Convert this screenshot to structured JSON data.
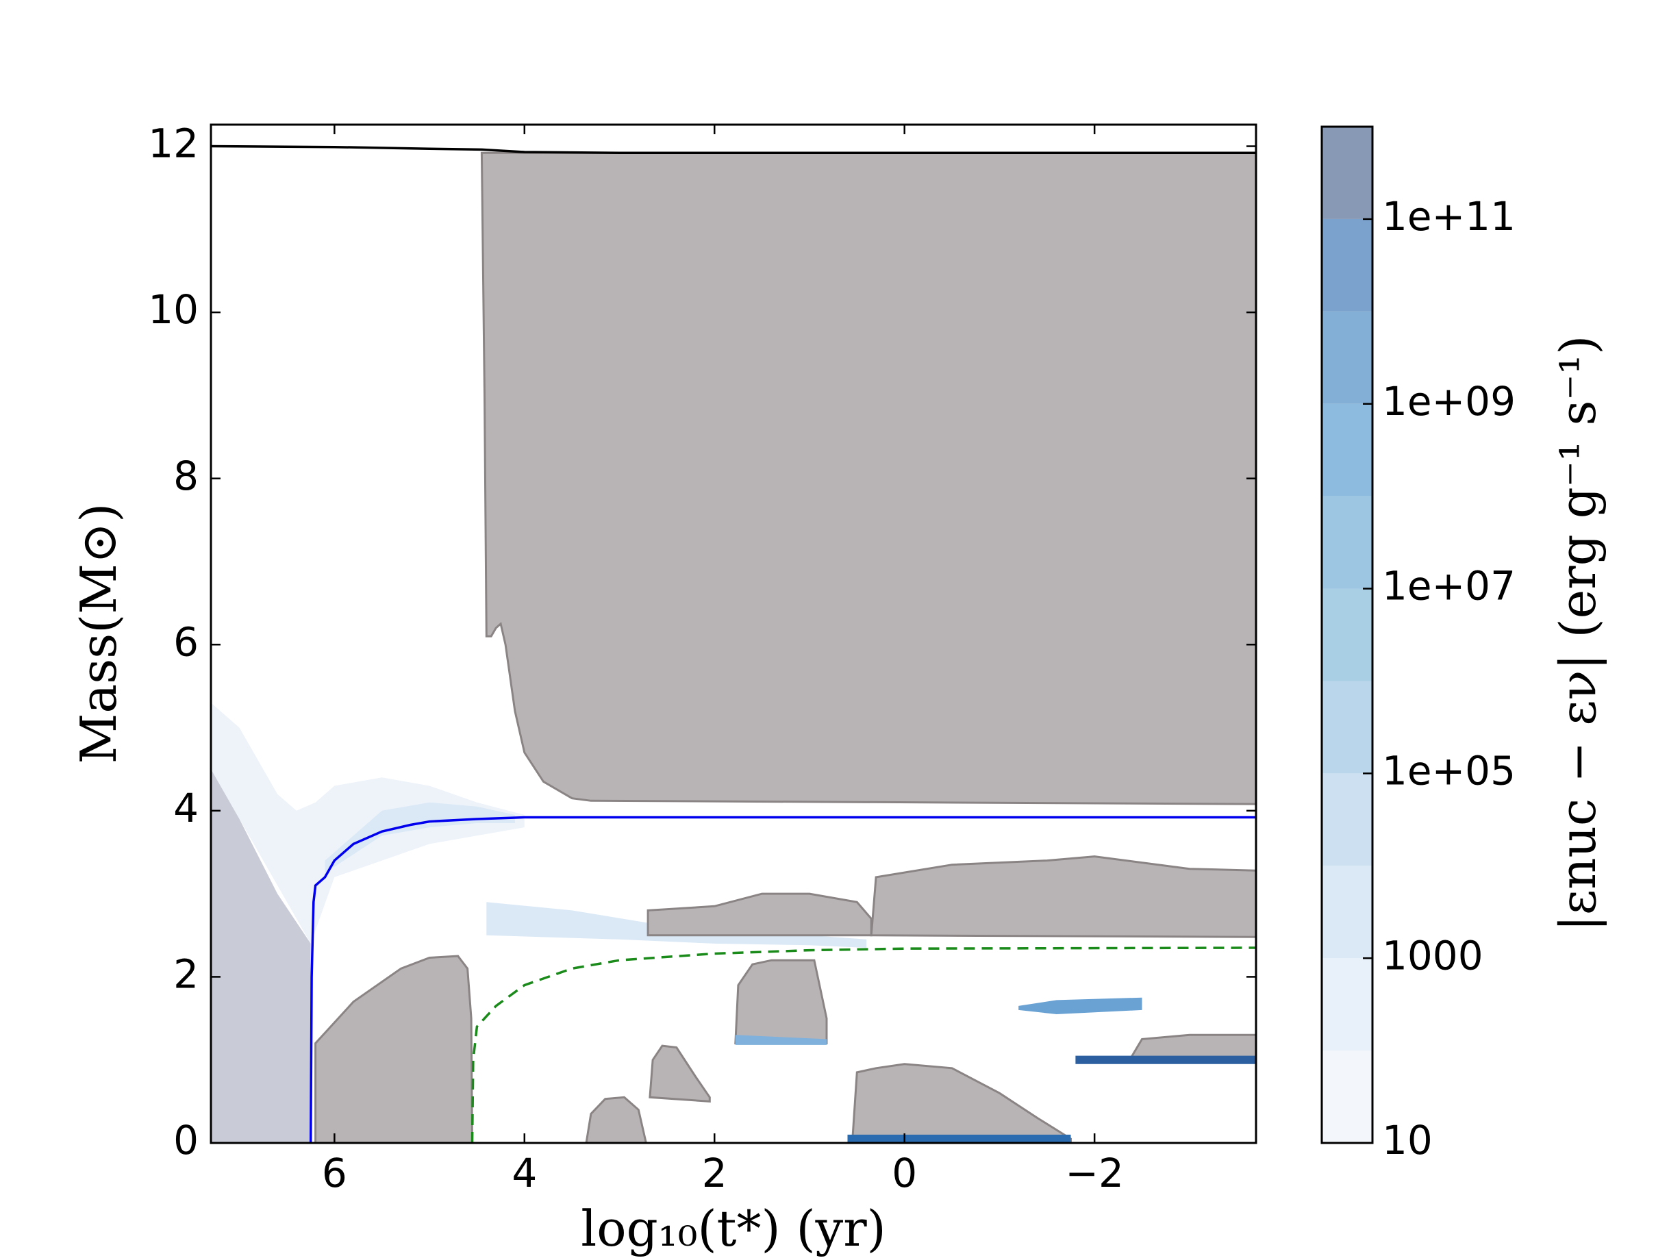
{
  "chart_data": {
    "type": "kippenhahn",
    "xlabel": "log₁₀(t*) (yr)",
    "ylabel": "Mass(M⊙)",
    "colorbar_label": "|εnuc − εν|  (erg g⁻¹ s⁻¹)",
    "xlim": [
      7.3,
      -3.7
    ],
    "ylim": [
      0,
      12.26
    ],
    "xticks": [
      6,
      4,
      2,
      0,
      {
        "value": -2,
        "label": "−2"
      }
    ],
    "yticks": [
      0,
      2,
      4,
      6,
      8,
      10,
      12
    ],
    "clim": [
      10,
      1000000000000
    ],
    "clog": true,
    "colorbar_levels": [
      10,
      100,
      1000,
      10000,
      100000,
      1000000,
      10000000,
      100000000,
      1000000000,
      10000000000,
      100000000000,
      1000000000000
    ],
    "colorbar_colors": [
      "#f3f7fc",
      "#e8f1fa",
      "#dbe9f6",
      "#cde0f1",
      "#bad6eb",
      "#a9cfe5",
      "#9cc6e2",
      "#8dbbdf",
      "#83afd6",
      "#7aa2cc",
      "#8899b5"
    ],
    "cticks": [
      10,
      1000,
      {
        "value": 100000,
        "label": "1e+05"
      },
      {
        "value": 10000000,
        "label": "1e+07"
      },
      {
        "value": 1000000000,
        "label": "1e+09"
      },
      {
        "value": 100000000000,
        "label": "1e+11"
      }
    ],
    "region_stroke": "#8a8485",
    "regions": [
      {
        "color": "#eef3fa",
        "x": [
          7.3,
          7.0,
          6.6,
          6.4,
          6.2,
          6.0,
          5.5,
          5.0,
          4.5,
          4.0,
          4.0,
          5.0,
          6.0,
          6.25,
          7.3
        ],
        "y": [
          5.3,
          5.0,
          4.2,
          4.0,
          4.1,
          4.3,
          4.4,
          4.3,
          4.1,
          3.95,
          3.8,
          3.6,
          3.2,
          2.4,
          4.5
        ]
      },
      {
        "color": "#c9cbd6",
        "x": [
          7.3,
          7.0,
          6.6,
          6.25,
          6.25,
          7.3
        ],
        "y": [
          4.5,
          3.9,
          3.0,
          2.4,
          0,
          0
        ]
      },
      {
        "color": "#dbe9f6",
        "x": [
          6.1,
          5.5,
          5.0,
          4.5,
          4.1,
          4.1,
          4.5,
          5.0,
          5.5,
          6.1
        ],
        "y": [
          3.4,
          4.0,
          4.1,
          4.05,
          3.95,
          3.85,
          3.85,
          3.8,
          3.7,
          3.25
        ]
      },
      {
        "color": "#b8b4b5",
        "x": [
          4.45,
          4.42,
          4.4,
          4.35,
          4.3,
          4.25,
          4.2,
          4.1,
          4.0,
          3.8,
          3.5,
          3.3,
          -3.7,
          -3.7
        ],
        "y": [
          11.92,
          9,
          6.1,
          6.1,
          6.2,
          6.25,
          6.0,
          5.2,
          4.7,
          4.35,
          4.15,
          4.12,
          4.08,
          11.92
        ]
      },
      {
        "color": "#b8b4b5",
        "x": [
          6.2,
          6.2,
          5.8,
          5.3,
          5.0,
          4.7,
          4.6,
          4.56,
          4.55
        ],
        "y": [
          0,
          1.2,
          1.7,
          2.1,
          2.23,
          2.25,
          2.1,
          1.5,
          0
        ]
      },
      {
        "color": "#dbe9f6",
        "x": [
          4.4,
          3.5,
          2.7,
          2.0,
          1.0,
          0.4,
          0.4,
          1.0,
          2.0,
          3.0,
          4.4
        ],
        "y": [
          2.9,
          2.8,
          2.65,
          2.55,
          2.5,
          2.45,
          2.35,
          2.38,
          2.4,
          2.45,
          2.5
        ]
      },
      {
        "color": "#b8b4b5",
        "x": [
          3.35,
          3.3,
          3.15,
          2.95,
          2.8,
          2.72
        ],
        "y": [
          0,
          0.35,
          0.53,
          0.55,
          0.4,
          0
        ]
      },
      {
        "color": "#b8b4b5",
        "x": [
          2.68,
          2.65,
          2.55,
          2.4,
          2.2,
          2.05,
          2.05
        ],
        "y": [
          0.55,
          1.0,
          1.17,
          1.15,
          0.8,
          0.55,
          0.5
        ]
      },
      {
        "color": "#b8b4b5",
        "x": [
          1.78,
          1.75,
          1.6,
          1.4,
          1.2,
          0.95,
          0.82,
          0.82
        ],
        "y": [
          1.2,
          1.9,
          2.15,
          2.2,
          2.2,
          2.2,
          1.5,
          1.2
        ]
      },
      {
        "color": "#b8b4b5",
        "x": [
          0.55,
          0.5,
          0.3,
          0,
          -0.5,
          -1.0,
          -1.4,
          -1.75,
          -1.75
        ],
        "y": [
          0,
          0.85,
          0.9,
          0.95,
          0.9,
          0.6,
          0.3,
          0.05,
          0
        ]
      },
      {
        "color": "#b8b4b5",
        "x": [
          2.7,
          2.7,
          2.0,
          1.5,
          1.0,
          0.5,
          0.35,
          0.35
        ],
        "y": [
          2.5,
          2.8,
          2.85,
          3.0,
          3.0,
          2.9,
          2.7,
          2.5
        ]
      },
      {
        "color": "#b8b4b5",
        "x": [
          0.35,
          0.3,
          -0.5,
          -1.5,
          -2.0,
          -3.0,
          -3.7,
          -3.7
        ],
        "y": [
          2.5,
          3.2,
          3.35,
          3.4,
          3.45,
          3.3,
          3.28,
          2.48
        ]
      },
      {
        "color": "#b8b4b5",
        "x": [
          -2.37,
          -2.5,
          -3.0,
          -3.7,
          -3.7
        ],
        "y": [
          1.0,
          1.25,
          1.3,
          1.3,
          1.0
        ]
      },
      {
        "color": "#2b6cb0",
        "x": [
          0.6,
          -1.75,
          -1.75,
          0.6
        ],
        "y": [
          0.1,
          0.1,
          0,
          0
        ]
      },
      {
        "color": "#2b5fa0",
        "x": [
          -1.8,
          -3.7,
          -3.7,
          -1.8
        ],
        "y": [
          1.05,
          1.05,
          0.95,
          0.95
        ]
      },
      {
        "color": "#6aa2d4",
        "x": [
          -1.2,
          -1.6,
          -2.5,
          -2.5,
          -1.6,
          -1.2
        ],
        "y": [
          1.65,
          1.72,
          1.75,
          1.6,
          1.55,
          1.6
        ]
      },
      {
        "color": "#7fb1dc",
        "x": [
          1.78,
          0.82,
          0.82,
          1.78
        ],
        "y": [
          1.3,
          1.25,
          1.18,
          1.18
        ]
      }
    ],
    "series": [
      {
        "color": "#000000",
        "dash": false,
        "x": [
          7.3,
          6.0,
          5.0,
          4.45,
          4.0,
          3.0,
          2.0,
          -3.7
        ],
        "values": [
          12.0,
          11.99,
          11.97,
          11.96,
          11.93,
          11.92,
          11.92,
          11.92
        ]
      },
      {
        "color": "#0000ee",
        "dash": false,
        "x": [
          6.25,
          6.24,
          6.22,
          6.2,
          6.1,
          6.0,
          5.8,
          5.5,
          5.2,
          5.0,
          4.5,
          4.0,
          3.0,
          -3.7
        ],
        "values": [
          0,
          2.0,
          2.9,
          3.1,
          3.2,
          3.4,
          3.6,
          3.75,
          3.83,
          3.87,
          3.9,
          3.92,
          3.92,
          3.92
        ]
      },
      {
        "color": "#1a8a1a",
        "dash": true,
        "x": [
          4.55,
          4.54,
          4.5,
          4.3,
          4.0,
          3.5,
          3.0,
          2.0,
          1.0,
          0,
          -3.7
        ],
        "values": [
          0,
          1.0,
          1.4,
          1.65,
          1.9,
          2.1,
          2.2,
          2.28,
          2.32,
          2.34,
          2.35
        ]
      }
    ]
  }
}
